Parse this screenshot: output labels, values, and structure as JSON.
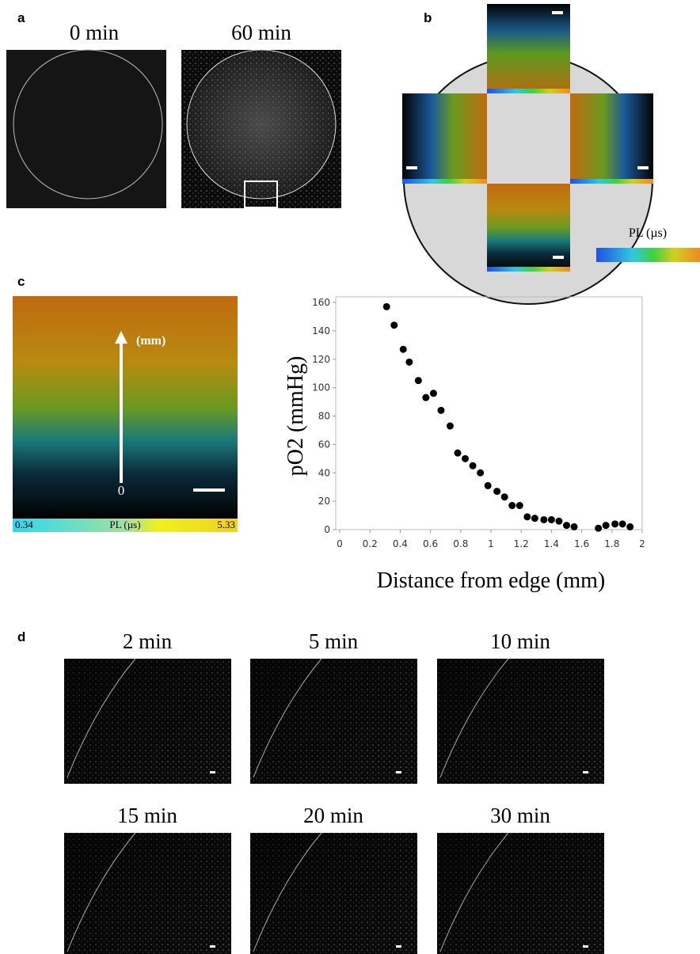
{
  "panels": {
    "a": {
      "label": "a",
      "images": [
        "0 min",
        "60 min"
      ]
    },
    "b": {
      "label": "b",
      "colorbar_label": "PL (µs)"
    },
    "c": {
      "label": "c",
      "image": {
        "arrow_label": "(mm)",
        "arrow_origin": "0",
        "colorbar_min": "0.34",
        "colorbar_label": "PL (µs)",
        "colorbar_max": "5.33"
      }
    },
    "d": {
      "label": "d",
      "images": [
        "2 min",
        "5 min",
        "10 min",
        "15 min",
        "20 min",
        "30 min"
      ]
    }
  },
  "chart_data": {
    "type": "scatter",
    "xlabel": "Distance from edge (mm)",
    "ylabel": "pO2 (mmHg)",
    "color": "#000000",
    "x": [
      0.31,
      0.36,
      0.42,
      0.46,
      0.52,
      0.57,
      0.62,
      0.67,
      0.73,
      0.78,
      0.83,
      0.88,
      0.93,
      0.98,
      1.04,
      1.09,
      1.14,
      1.19,
      1.24,
      1.29,
      1.35,
      1.4,
      1.45,
      1.5,
      1.55,
      1.71,
      1.76,
      1.82,
      1.87,
      1.92
    ],
    "values": [
      157,
      144,
      127,
      118,
      105,
      93,
      96,
      84,
      73,
      54,
      50,
      45,
      40,
      31,
      27,
      23,
      17,
      17,
      9,
      8,
      7,
      7,
      6,
      3,
      2,
      1,
      3,
      4,
      4,
      2
    ],
    "xlim": [
      0,
      2
    ],
    "xticks": [
      0,
      0.2,
      0.4,
      0.6,
      0.8,
      1,
      1.2,
      1.4,
      1.6,
      1.8,
      2
    ],
    "ylim": [
      0,
      160
    ],
    "yticks": [
      0,
      20,
      40,
      60,
      80,
      100,
      120,
      140,
      160
    ]
  }
}
